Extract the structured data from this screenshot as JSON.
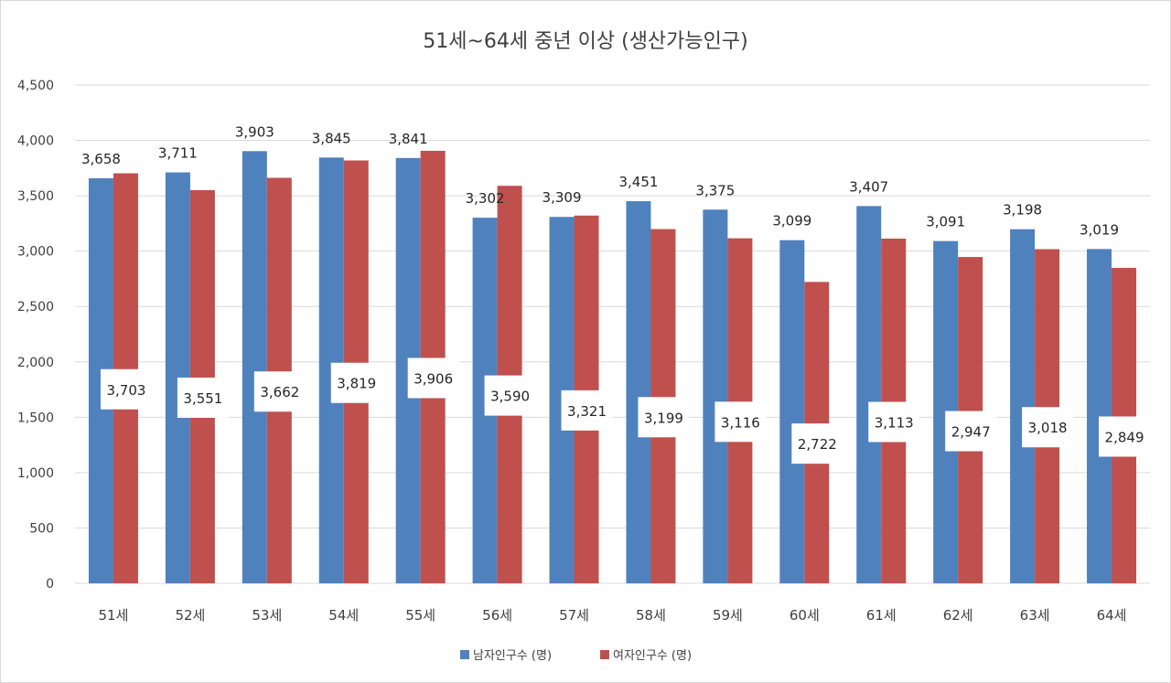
{
  "chart_data": {
    "type": "bar",
    "title": "51세~64세 중년 이상 (생산가능인구)",
    "categories": [
      "51세",
      "52세",
      "53세",
      "54세",
      "55세",
      "56세",
      "57세",
      "58세",
      "59세",
      "60세",
      "61세",
      "62세",
      "63세",
      "64세"
    ],
    "series": [
      {
        "name": "남자인구수 (명)",
        "color": "#4f81bd",
        "values": [
          3658,
          3711,
          3903,
          3845,
          3841,
          3302,
          3309,
          3451,
          3375,
          3099,
          3407,
          3091,
          3198,
          3019
        ]
      },
      {
        "name": "여자인구수 (명)",
        "color": "#c0504d",
        "values": [
          3703,
          3551,
          3662,
          3819,
          3906,
          3590,
          3321,
          3199,
          3116,
          2722,
          3113,
          2947,
          3018,
          2849
        ]
      }
    ],
    "ylim": [
      0,
      4500
    ],
    "yticks": [
      0,
      500,
      1000,
      1500,
      2000,
      2500,
      3000,
      3500,
      4000,
      4500
    ],
    "ytick_labels": [
      "0",
      "500",
      "1,000",
      "1,500",
      "2,000",
      "2,500",
      "3,000",
      "3,500",
      "4,000",
      "4,500"
    ],
    "data_labels_male": [
      "3,658",
      "3,711",
      "3,903",
      "3,845",
      "3,841",
      "3,302",
      "3,309",
      "3,451",
      "3,375",
      "3,099",
      "3,407",
      "3,091",
      "3,198",
      "3,019"
    ],
    "data_labels_female": [
      "3,703",
      "3,551",
      "3,662",
      "3,819",
      "3,906",
      "3,590",
      "3,321",
      "3,199",
      "3,116",
      "2,722",
      "3,113",
      "2,947",
      "3,018",
      "2,849"
    ],
    "grid": true,
    "gridline_color": "#d9d9d9",
    "legend_position": "bottom"
  }
}
